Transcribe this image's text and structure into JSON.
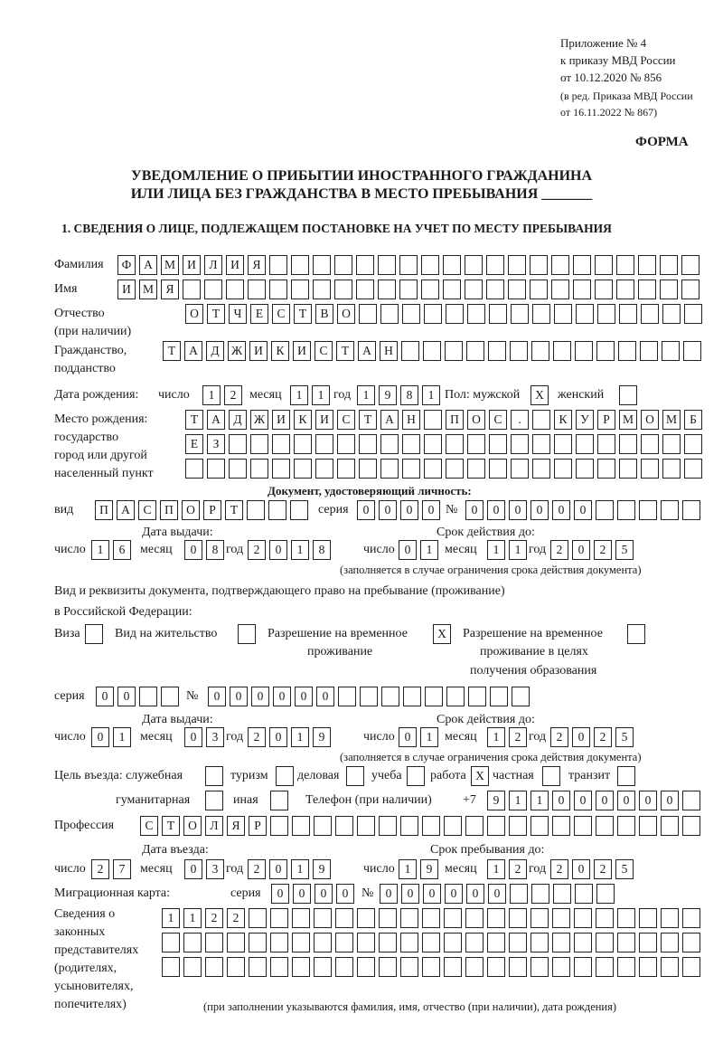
{
  "header": {
    "appendix": "Приложение № 4",
    "order": "к приказу МВД России",
    "order_date": "от 10.12.2020 № 856",
    "amend1": "(в ред. Приказа МВД России",
    "amend2": "от 16.11.2022 № 867)",
    "form": "ФОРМА"
  },
  "title": {
    "line1": "УВЕДОМЛЕНИЕ О ПРИБЫТИИ ИНОСТРАННОГО ГРАЖДАНИНА",
    "line2": "ИЛИ ЛИЦА БЕЗ ГРАЖДАНСТВА В МЕСТО ПРЕБЫВАНИЯ _______"
  },
  "section1": "1. СВЕДЕНИЯ О ЛИЦЕ, ПОДЛЕЖАЩЕМ ПОСТАНОВКЕ НА УЧЕТ ПО МЕСТУ ПРЕБЫВАНИЯ",
  "person": {
    "surname_label": "Фамилия",
    "surname": "ФАМИЛИЯ",
    "name_label": "Имя",
    "name": "ИМЯ",
    "patronymic_label1": "Отчество",
    "patronymic_label2": "(при наличии)",
    "patronymic": "ОТЧЕСТВО",
    "citizenship_label1": "Гражданство,",
    "citizenship_label2": "подданство",
    "citizenship": "ТАДЖИКИСТАН",
    "dob_label": "Дата рождения:",
    "day_label": "число",
    "month_label": "месяц",
    "year_label": "год",
    "dob_day": "12",
    "dob_month": "11",
    "dob_year": "1981",
    "sex_label": "Пол: мужской",
    "male": "X",
    "female_label": "женский",
    "female": "",
    "birthplace_label1": "Место рождения:",
    "birthplace_label2": "государство",
    "birthplace_label3": "город или другой",
    "birthplace_label4": "населенный пункт",
    "birthplace_row1": "ТАДЖИКИСТАН ПОС. КУРМОМБ",
    "birthplace_row2": "ЕЗ",
    "birthplace_row3": ""
  },
  "id_doc": {
    "heading": "Документ, удостоверяющий личность:",
    "type_label": "вид",
    "type": "ПАСПОРТ",
    "series_label": "серия",
    "series": "0000",
    "number_label": "№",
    "number": "000000",
    "issue_label": "Дата выдачи:",
    "valid_label": "Срок действия до:",
    "day_label": "число",
    "month_label": "месяц",
    "year_label": "год",
    "issue_day": "16",
    "issue_month": "08",
    "issue_year": "2018",
    "valid_day": "01",
    "valid_month": "11",
    "valid_year": "2025",
    "note": "(заполняется в случае ограничения срока действия документа)"
  },
  "stay_doc": {
    "intro1": "Вид и реквизиты документа, подтверждающего право на пребывание (проживание)",
    "intro2": "в Российской Федерации:",
    "visa_label": "Виза",
    "visa": "",
    "residence_label": "Вид на жительство",
    "residence": "",
    "temp_label1": "Разрешение на временное",
    "temp_label2": "проживание",
    "temp": "X",
    "edu_label1": "Разрешение на временное",
    "edu_label2": "проживание в целях",
    "edu_label3": "получения образования",
    "edu": "",
    "series_label": "серия",
    "series": "00",
    "number_label": "№",
    "number": "000000",
    "issue_label": "Дата выдачи:",
    "valid_label": "Срок действия до:",
    "day_label": "число",
    "month_label": "месяц",
    "year_label": "год",
    "issue_day": "01",
    "issue_month": "03",
    "issue_year": "2019",
    "valid_day": "01",
    "valid_month": "12",
    "valid_year": "2025",
    "note": "(заполняется в случае ограничения срока действия документа)"
  },
  "purpose": {
    "label": "Цель въезда: служебная",
    "official": "",
    "tourism_label": "туризм",
    "tourism": "",
    "business_label": "деловая",
    "business": "",
    "study_label": "учеба",
    "study": "",
    "work_label": "работа",
    "work": "X",
    "private_label": "частная",
    "private": "",
    "transit_label": "транзит",
    "transit": "",
    "humanitarian_label": "гуманитарная",
    "humanitarian": "",
    "other_label": "иная",
    "other": "",
    "phone_label": "Телефон (при наличии)",
    "phone_prefix": "+7",
    "phone": "911000000"
  },
  "profession": {
    "label": "Профессия",
    "value": "СТОЛЯР"
  },
  "entry": {
    "entry_label": "Дата въезда:",
    "stay_until_label": "Срок пребывания до:",
    "day_label": "число",
    "month_label": "месяц",
    "year_label": "год",
    "entry_day": "27",
    "entry_month": "03",
    "entry_year": "2019",
    "until_day": "19",
    "until_month": "12",
    "until_year": "2025"
  },
  "migration_card": {
    "label": "Миграционная карта:",
    "series_label": "серия",
    "series": "0000",
    "number_label": "№",
    "number": "000000"
  },
  "representatives": {
    "label1": "Сведения о",
    "label2": "законных",
    "label3": "представителях",
    "label4": "(родителях,",
    "label5": "усыновителях,",
    "label6": "попечителях)",
    "row1": "1122",
    "row2": "",
    "row3": "",
    "note": "(при заполнении указываются фамилия, имя, отчество (при наличии), дата рождения)"
  }
}
